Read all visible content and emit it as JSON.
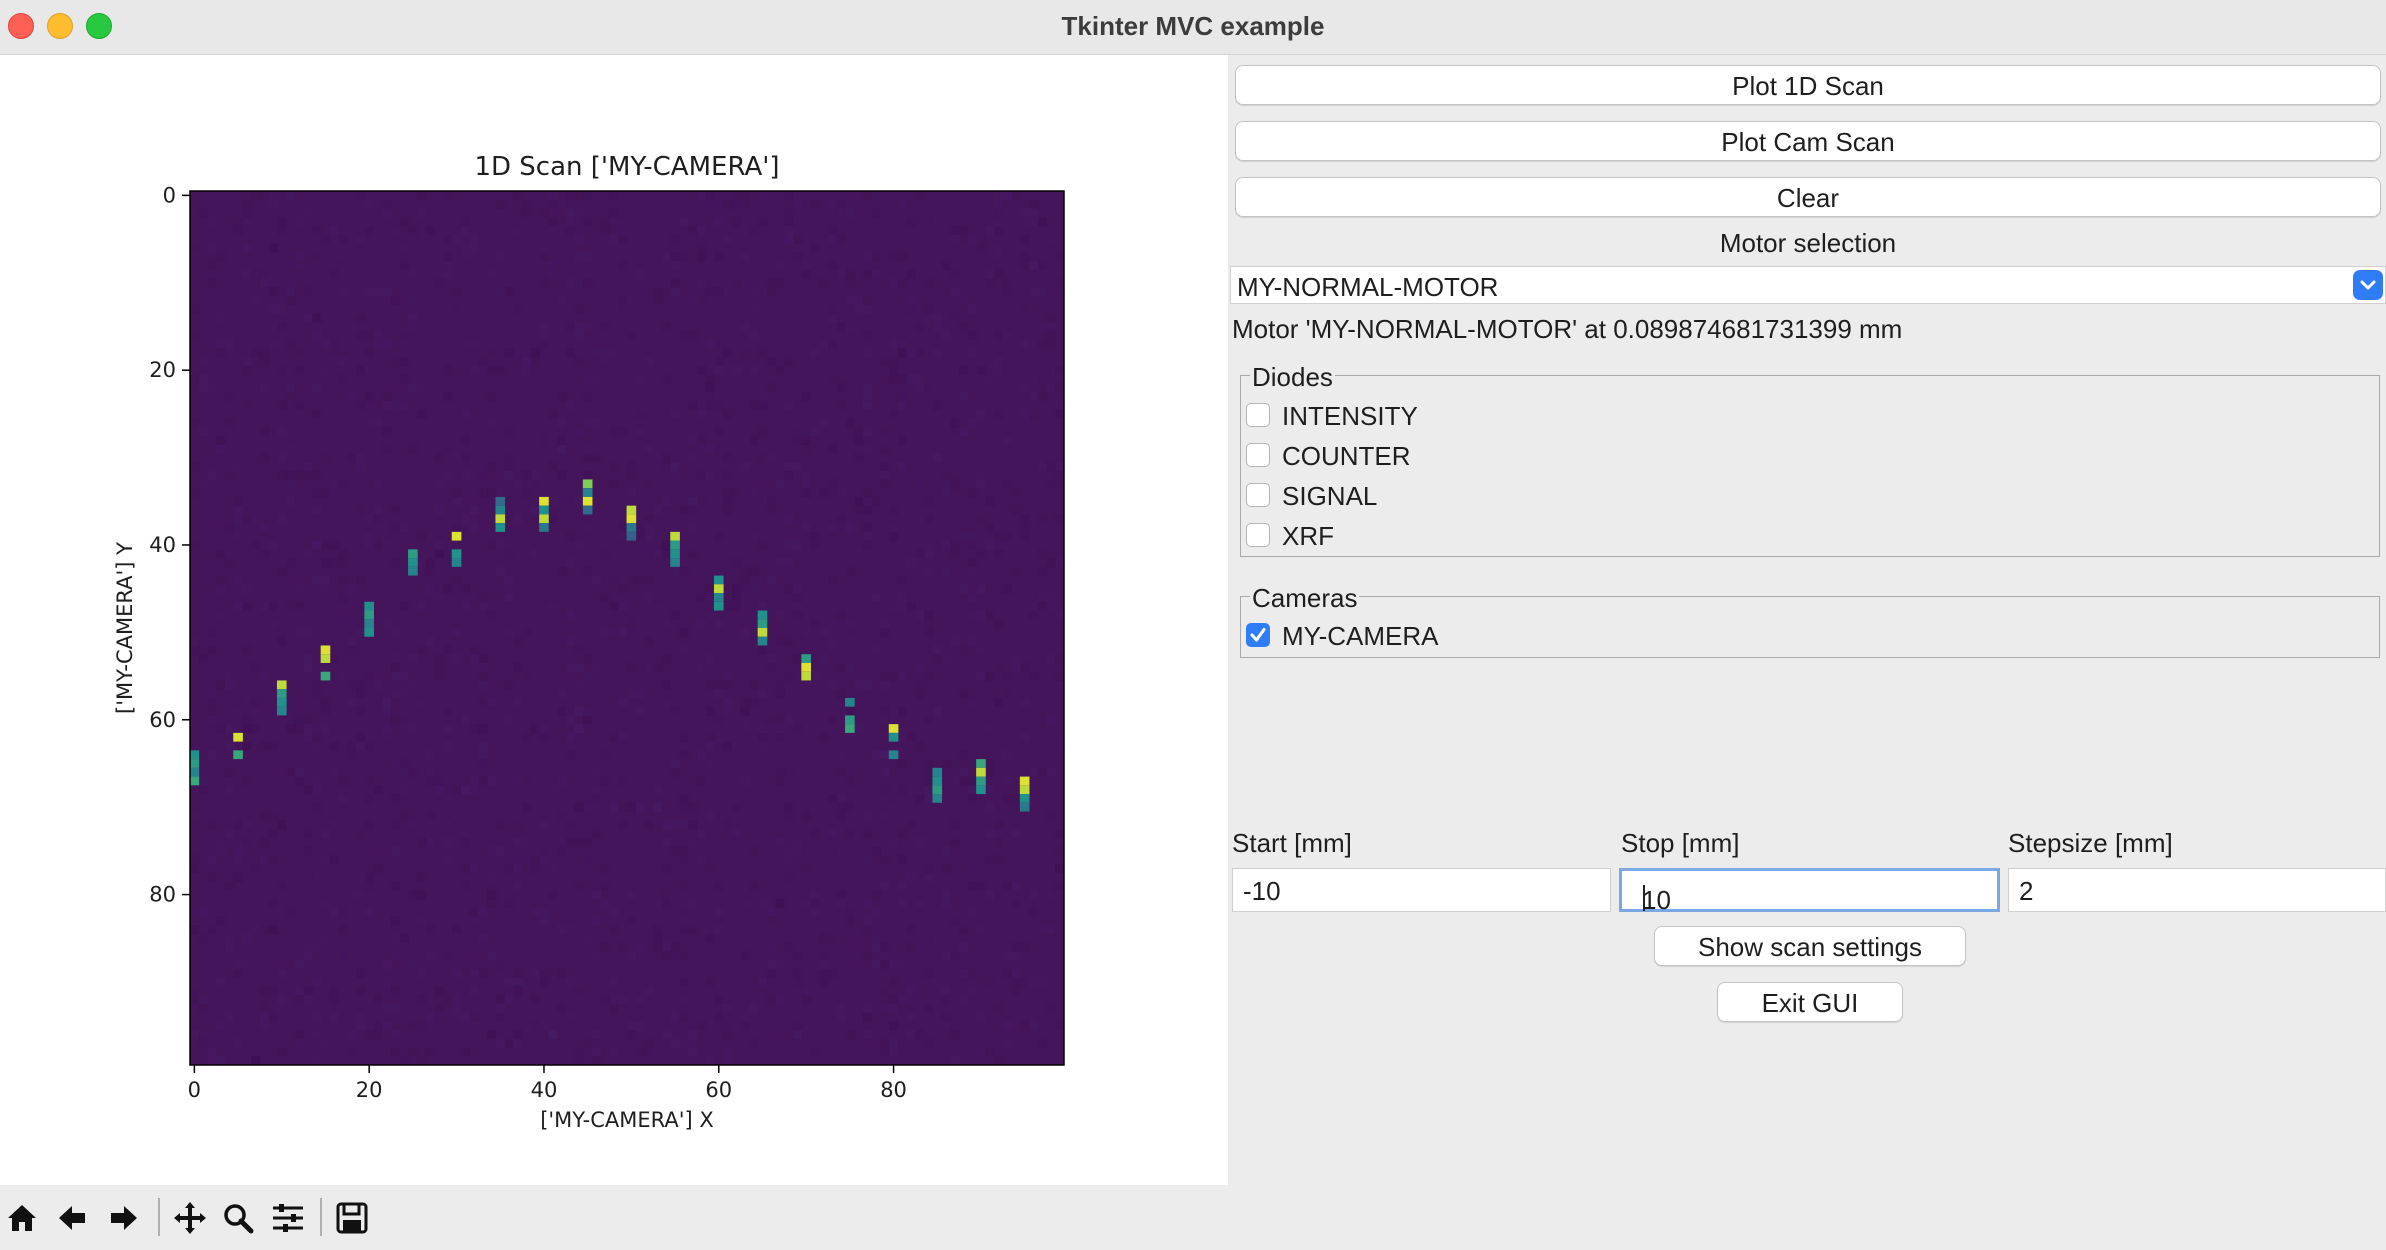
{
  "window": {
    "title": "Tkinter MVC example",
    "controls": [
      "close",
      "minimize",
      "maximize"
    ]
  },
  "buttons": {
    "plot_1d": "Plot 1D Scan",
    "plot_cam": "Plot Cam Scan",
    "clear": "Clear",
    "show_scan_settings": "Show scan settings",
    "exit_gui": "Exit GUI"
  },
  "motor": {
    "section_label": "Motor selection",
    "selected": "MY-NORMAL-MOTOR",
    "status": "Motor 'MY-NORMAL-MOTOR' at 0.089874681731399 mm"
  },
  "diodes": {
    "label": "Diodes",
    "items": [
      {
        "label": "INTENSITY",
        "checked": false
      },
      {
        "label": "COUNTER",
        "checked": false
      },
      {
        "label": "SIGNAL",
        "checked": false
      },
      {
        "label": "XRF",
        "checked": false
      }
    ]
  },
  "cameras": {
    "label": "Cameras",
    "items": [
      {
        "label": "MY-CAMERA",
        "checked": true
      }
    ]
  },
  "scan": {
    "start_label": "Start [mm]",
    "start_value": "-10",
    "stop_label": "Stop [mm]",
    "stop_value": "10",
    "stepsize_label": "Stepsize [mm]",
    "stepsize_value": "2"
  },
  "toolbar": {
    "icons": [
      "home-icon",
      "back-icon",
      "forward-icon",
      "pan-icon",
      "zoom-icon",
      "configure-subplots-icon",
      "save-icon"
    ]
  },
  "chart_data": {
    "type": "heatmap",
    "title": "1D Scan ['MY-CAMERA']",
    "xlabel": "['MY-CAMERA'] X",
    "ylabel": "['MY-CAMERA'] Y",
    "xlim": [
      0,
      100
    ],
    "ylim": [
      100,
      0
    ],
    "xticks": [
      0,
      20,
      40,
      60,
      80
    ],
    "yticks": [
      0,
      20,
      40,
      60,
      80
    ],
    "colormap": "viridis",
    "background_color": "#44155a",
    "grid": false,
    "spots": [
      {
        "x": 0,
        "y": [
          64,
          65,
          66,
          67
        ],
        "intensity": [
          0.5,
          0.55,
          0.45,
          0.6
        ]
      },
      {
        "x": 5,
        "y": [
          62,
          64
        ],
        "intensity": [
          0.95,
          0.6
        ]
      },
      {
        "x": 10,
        "y": [
          56,
          57,
          58,
          59
        ],
        "intensity": [
          0.9,
          0.55,
          0.5,
          0.45
        ]
      },
      {
        "x": 15,
        "y": [
          52,
          53,
          55
        ],
        "intensity": [
          0.95,
          0.9,
          0.6
        ]
      },
      {
        "x": 20,
        "y": [
          47,
          48,
          49,
          50
        ],
        "intensity": [
          0.5,
          0.55,
          0.45,
          0.5
        ]
      },
      {
        "x": 25,
        "y": [
          41,
          42,
          43
        ],
        "intensity": [
          0.55,
          0.5,
          0.45
        ]
      },
      {
        "x": 30,
        "y": [
          39,
          41,
          42
        ],
        "intensity": [
          0.95,
          0.5,
          0.45
        ]
      },
      {
        "x": 35,
        "y": [
          35,
          36,
          37,
          38
        ],
        "intensity": [
          0.35,
          0.45,
          0.9,
          0.5
        ]
      },
      {
        "x": 40,
        "y": [
          35,
          36,
          37,
          38
        ],
        "intensity": [
          0.95,
          0.5,
          0.9,
          0.4
        ]
      },
      {
        "x": 45,
        "y": [
          33,
          34,
          35,
          36
        ],
        "intensity": [
          0.8,
          0.45,
          0.95,
          0.35
        ]
      },
      {
        "x": 50,
        "y": [
          36,
          37,
          38,
          39
        ],
        "intensity": [
          0.9,
          0.95,
          0.4,
          0.3
        ]
      },
      {
        "x": 55,
        "y": [
          39,
          40,
          41,
          42
        ],
        "intensity": [
          0.9,
          0.55,
          0.5,
          0.45
        ]
      },
      {
        "x": 60,
        "y": [
          44,
          45,
          46,
          47
        ],
        "intensity": [
          0.5,
          0.9,
          0.45,
          0.5
        ]
      },
      {
        "x": 65,
        "y": [
          48,
          49,
          50,
          51
        ],
        "intensity": [
          0.5,
          0.55,
          0.9,
          0.45
        ]
      },
      {
        "x": 70,
        "y": [
          53,
          54,
          55
        ],
        "intensity": [
          0.55,
          0.95,
          0.9
        ]
      },
      {
        "x": 75,
        "y": [
          58,
          60,
          61
        ],
        "intensity": [
          0.45,
          0.55,
          0.6
        ]
      },
      {
        "x": 80,
        "y": [
          61,
          62,
          64
        ],
        "intensity": [
          0.95,
          0.5,
          0.45
        ]
      },
      {
        "x": 85,
        "y": [
          66,
          67,
          68,
          69
        ],
        "intensity": [
          0.45,
          0.5,
          0.55,
          0.45
        ]
      },
      {
        "x": 90,
        "y": [
          65,
          66,
          67,
          68
        ],
        "intensity": [
          0.6,
          0.9,
          0.55,
          0.5
        ]
      },
      {
        "x": 95,
        "y": [
          67,
          68,
          69,
          70
        ],
        "intensity": [
          0.95,
          0.9,
          0.5,
          0.4
        ]
      }
    ]
  }
}
